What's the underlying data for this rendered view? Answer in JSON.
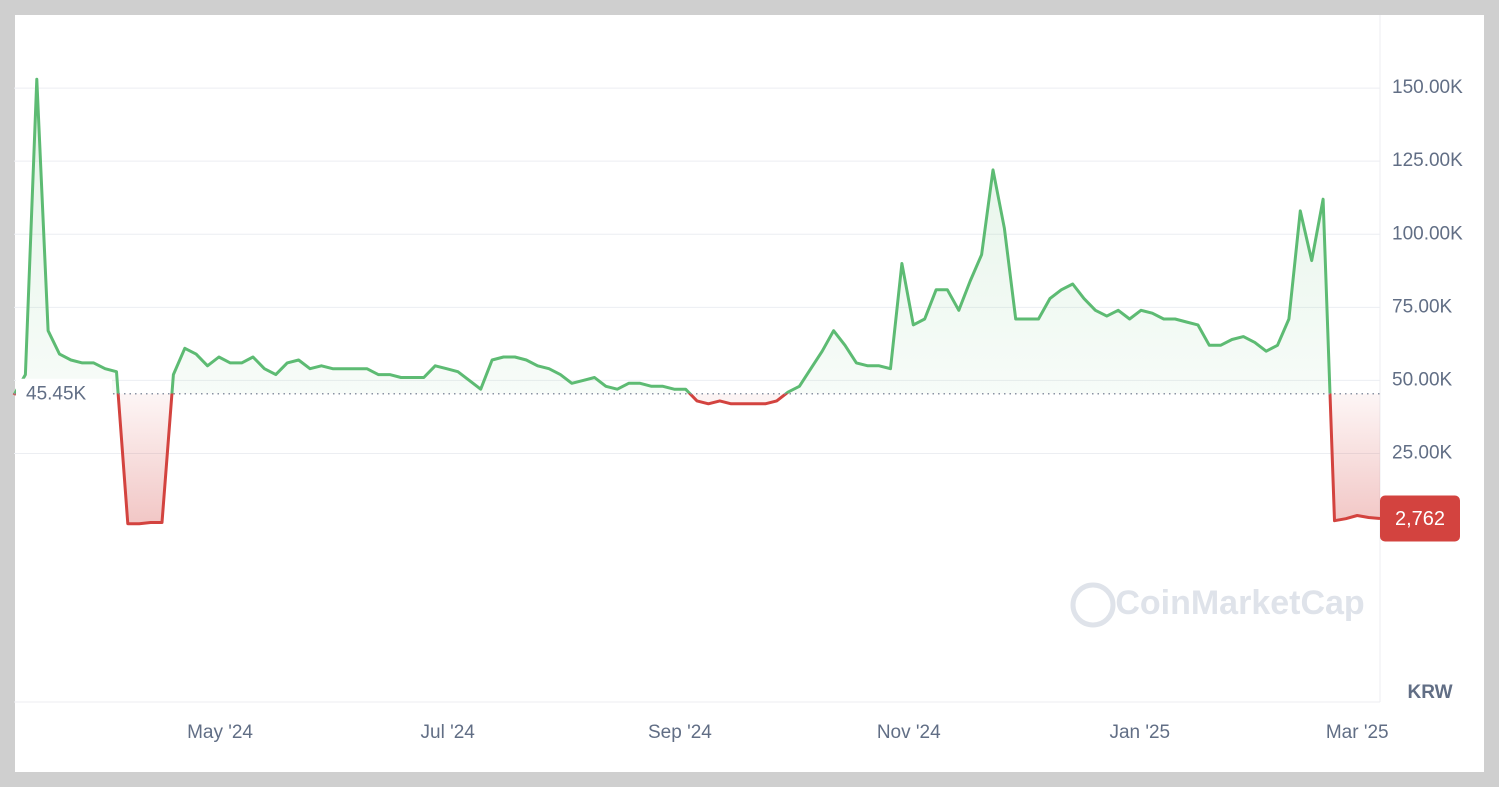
{
  "chart_data": {
    "type": "line",
    "watermark": "CoinMarketCap",
    "currency": "KRW",
    "baseline": {
      "value": 45450,
      "label": "45.45K"
    },
    "last_value_label": "2,762",
    "up_color": "#5dbb73",
    "down_color": "#d3433f",
    "xlim": [
      0,
      120
    ],
    "xticks": [
      {
        "value": 18.1,
        "label": "May '24"
      },
      {
        "value": 38.1,
        "label": "Jul '24"
      },
      {
        "value": 58.5,
        "label": "Sep '24"
      },
      {
        "value": 78.6,
        "label": "Nov '24"
      },
      {
        "value": 98.9,
        "label": "Jan '25"
      },
      {
        "value": 118,
        "label": "Mar '25"
      }
    ],
    "ylim": [
      -60000,
      175000
    ],
    "yticks": [
      {
        "value": 25000,
        "label": "25.00K"
      },
      {
        "value": 50000,
        "label": "50.00K"
      },
      {
        "value": 75000,
        "label": "75.00K"
      },
      {
        "value": 100000,
        "label": "100.00K"
      },
      {
        "value": 125000,
        "label": "125.00K"
      },
      {
        "value": 150000,
        "label": "150.00K"
      }
    ],
    "grid": true,
    "values": [
      45000,
      52000,
      153000,
      67000,
      59000,
      57000,
      56000,
      56000,
      54000,
      53000,
      1000,
      1000,
      1400,
      1400,
      52000,
      61000,
      59000,
      55000,
      58000,
      56000,
      56000,
      58000,
      54000,
      52000,
      56000,
      57000,
      54000,
      55000,
      54000,
      54000,
      54000,
      54000,
      52000,
      52000,
      51000,
      51000,
      51000,
      55000,
      54000,
      53000,
      50000,
      47000,
      57000,
      58000,
      58000,
      57000,
      55000,
      54000,
      52000,
      49000,
      50000,
      51000,
      48000,
      47000,
      49000,
      49000,
      48000,
      48000,
      47000,
      47000,
      43000,
      42000,
      43000,
      42000,
      42000,
      42000,
      42000,
      43000,
      46000,
      48000,
      54000,
      60000,
      67000,
      62000,
      56000,
      55000,
      55000,
      54000,
      90000,
      69000,
      71000,
      81000,
      81000,
      74000,
      84000,
      93000,
      122000,
      102000,
      71000,
      71000,
      71000,
      78000,
      81000,
      83000,
      78000,
      74000,
      72000,
      74000,
      71000,
      74000,
      73000,
      71000,
      71000,
      70000,
      69000,
      62000,
      62000,
      64000,
      65000,
      63000,
      60000,
      62000,
      71000,
      108000,
      91000,
      112000,
      2000,
      2700,
      3800,
      3100,
      2762
    ]
  }
}
